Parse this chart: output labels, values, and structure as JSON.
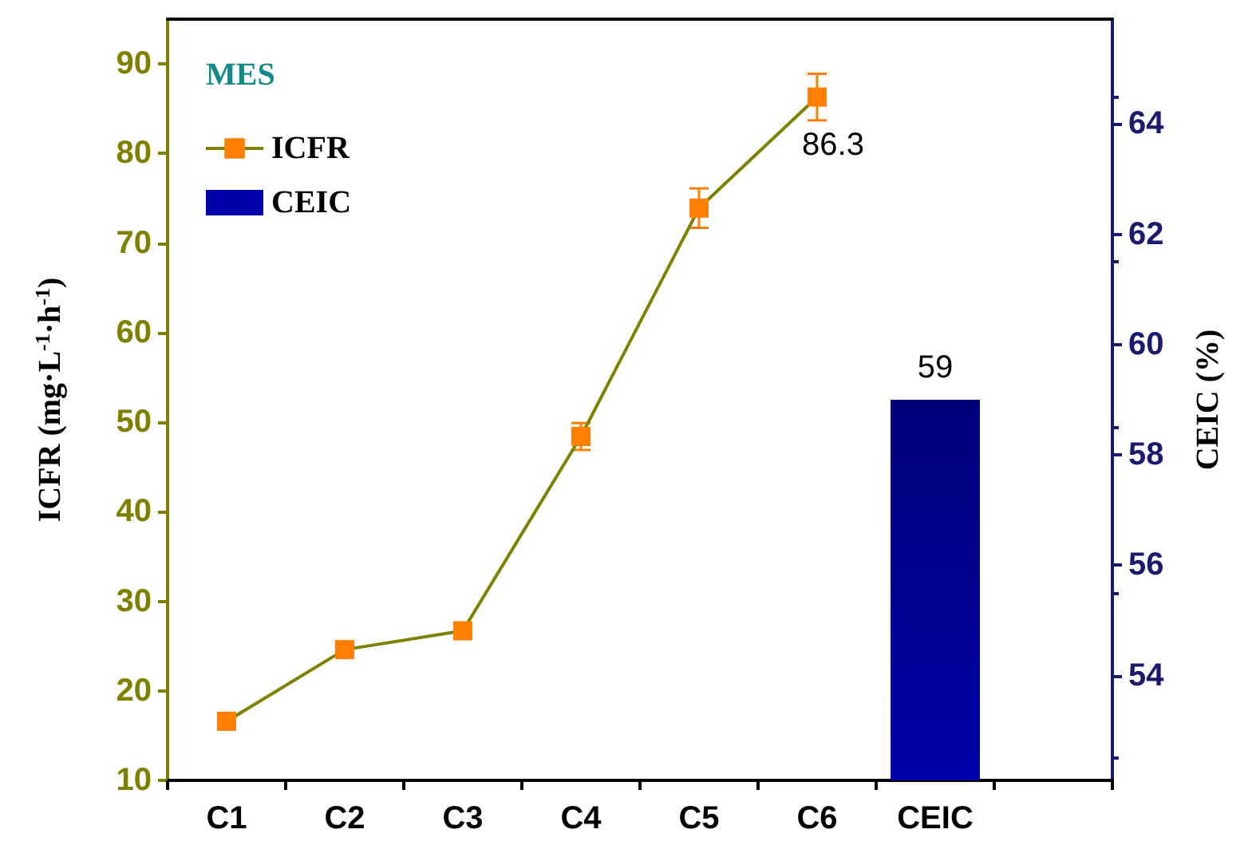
{
  "chart_data": {
    "type": "line",
    "title": "MES",
    "categories": [
      "C1",
      "C2",
      "C3",
      "C4",
      "C5",
      "C6",
      "CEIC",
      null
    ],
    "ylabel": "ICFR (mg·L$^{-1}$·h$^{-1}$)",
    "y2label": "CEIC (%)",
    "ylim": [
      10,
      95
    ],
    "yticks": [
      10,
      20,
      30,
      40,
      50,
      60,
      70,
      80,
      90
    ],
    "y2lim": [
      52.1,
      65.9
    ],
    "y2ticks": [
      54,
      56,
      58,
      60,
      62,
      64
    ],
    "series": [
      {
        "name": "ICFR",
        "color": "#ff7f00",
        "values": [
          16.6,
          24.6,
          26.7,
          48.4,
          73.9,
          86.3,
          null,
          null
        ],
        "errors": [
          null,
          null,
          null,
          1.5,
          2.2,
          2.6,
          null,
          null
        ],
        "value_labels": [
          null,
          null,
          null,
          null,
          null,
          "86.3",
          null,
          null
        ]
      },
      {
        "name": "CEIC",
        "type": "bar",
        "axis": "y2",
        "color": "#0000a8",
        "values": [
          null,
          null,
          null,
          null,
          null,
          null,
          59,
          null
        ],
        "value_labels": [
          null,
          null,
          null,
          null,
          null,
          null,
          "59",
          null
        ]
      }
    ],
    "marker": "square",
    "line_style": "solid",
    "legend": "top left",
    "grid": false
  }
}
